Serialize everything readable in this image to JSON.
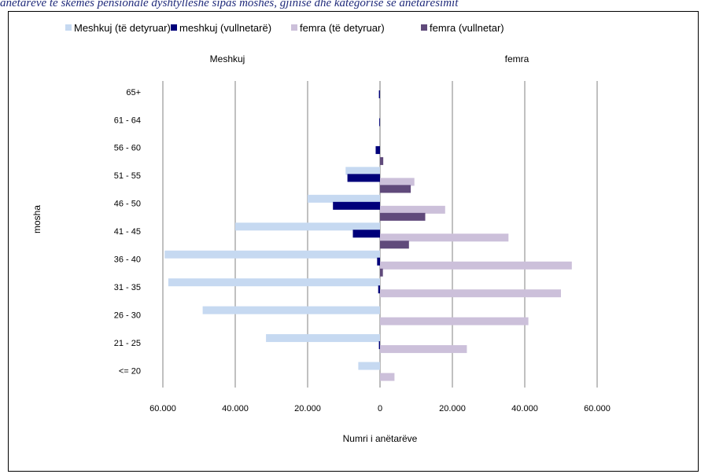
{
  "caption": "anëtarëve të skemës pensionale dyshtyllëshe sipas moshës, gjinisë dhe kategorisë së anëtarësimit",
  "chart_data": {
    "type": "bar",
    "orientation": "horizontal-population-pyramid",
    "ylabel": "mosha",
    "xlabel": "Numri i anëtarëve",
    "left_side_label": "Meshkuj",
    "right_side_label": "femra",
    "categories": [
      "<= 20",
      "21 - 25",
      "26 - 30",
      "31 - 35",
      "36 - 40",
      "41 - 45",
      "46 - 50",
      "51 - 55",
      "56 - 60",
      "61 - 64",
      "65+"
    ],
    "xlim": [
      -60000,
      60000
    ],
    "x_ticks": [
      -60000,
      -40000,
      -20000,
      0,
      20000,
      40000,
      60000
    ],
    "x_tick_labels": [
      "60.000",
      "40.000",
      "20.000",
      "0",
      "20.000",
      "40.000",
      "60.000"
    ],
    "grid": true,
    "legend_position": "top",
    "series": [
      {
        "name": "Meshkuj (të detyruar)",
        "side": "left",
        "color": "#c6d9f1",
        "values": [
          6000,
          31500,
          49000,
          58500,
          59500,
          40000,
          20000,
          9500,
          0,
          0,
          0
        ]
      },
      {
        "name": "meshkuj (vullnetarë)",
        "side": "left",
        "color": "#00007a",
        "values": [
          0,
          300,
          0,
          500,
          800,
          7500,
          13000,
          9000,
          1200,
          200,
          300
        ]
      },
      {
        "name": "femra (të detyruar)",
        "side": "right",
        "color": "#ccc0da",
        "values": [
          4000,
          24000,
          41000,
          50000,
          53000,
          35500,
          18000,
          9500,
          0,
          0,
          0
        ]
      },
      {
        "name": "femra (vullnetar)",
        "side": "right",
        "color": "#604a7b",
        "values": [
          0,
          0,
          0,
          0,
          800,
          8000,
          12500,
          8500,
          900,
          0,
          0
        ]
      }
    ]
  }
}
